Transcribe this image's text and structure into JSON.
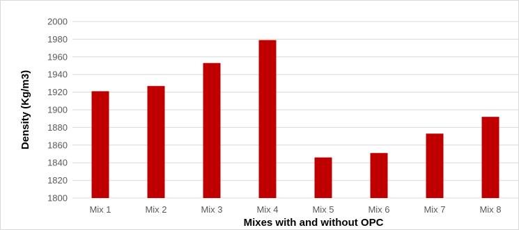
{
  "chart_data": {
    "type": "bar",
    "title": "",
    "xlabel": "Mixes with and without OPC",
    "ylabel": "Density (Kg/m3)",
    "categories": [
      "Mix 1",
      "Mix 2",
      "Mix 3",
      "Mix 4",
      "Mix 5",
      "Mix 6",
      "Mix 7",
      "Mix 8"
    ],
    "values": [
      1921,
      1927,
      1953,
      1979,
      1846,
      1851,
      1873,
      1892
    ],
    "ylim": [
      1800,
      2000
    ],
    "yticks": [
      1800,
      1820,
      1840,
      1860,
      1880,
      1900,
      1920,
      1940,
      1960,
      1980,
      2000
    ],
    "grid": true,
    "legend": "none",
    "colors": {
      "bar": "#c00000",
      "grid": "#d9d9d9",
      "tick_text": "#595959",
      "axis_title": "#000000"
    }
  }
}
